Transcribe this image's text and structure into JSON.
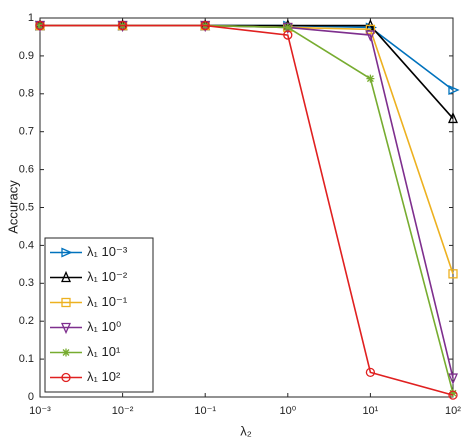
{
  "chart_data": {
    "type": "line",
    "x_label": "λ₂",
    "y_label": "Accuracy",
    "x": [
      0.001,
      0.01,
      0.1,
      1,
      10,
      100
    ],
    "xlim": [
      0.001,
      100
    ],
    "x_scale": "log",
    "xticks": [
      {
        "value": 0.001,
        "label": "10⁻³"
      },
      {
        "value": 0.01,
        "label": "10⁻²"
      },
      {
        "value": 0.1,
        "label": "10⁻¹"
      },
      {
        "value": 1,
        "label": "10⁰"
      },
      {
        "value": 10,
        "label": "10¹"
      },
      {
        "value": 100,
        "label": "10²"
      }
    ],
    "ylim": [
      0,
      1
    ],
    "yticks": [
      0,
      0.1,
      0.2,
      0.3,
      0.4,
      0.5,
      0.6,
      0.7,
      0.8,
      0.9,
      1
    ],
    "grid": false,
    "legend": "lower left",
    "series": [
      {
        "name": "λ₁ 10⁻³",
        "color": "#0072bd",
        "marker": "triangle-right",
        "values": [
          0.98,
          0.98,
          0.98,
          0.98,
          0.975,
          0.81
        ]
      },
      {
        "name": "λ₁ 10⁻²",
        "color": "#000000",
        "marker": "triangle-up",
        "values": [
          0.98,
          0.98,
          0.98,
          0.98,
          0.98,
          0.735
        ]
      },
      {
        "name": "λ₁ 10⁻¹",
        "color": "#edb120",
        "marker": "square",
        "values": [
          0.98,
          0.98,
          0.98,
          0.975,
          0.97,
          0.325
        ]
      },
      {
        "name": "λ₁ 10⁰",
        "color": "#7e2f8e",
        "marker": "triangle-down",
        "values": [
          0.98,
          0.98,
          0.98,
          0.975,
          0.955,
          0.05
        ]
      },
      {
        "name": "λ₁ 10¹",
        "color": "#77ac30",
        "marker": "asterisk",
        "values": [
          0.98,
          0.98,
          0.98,
          0.975,
          0.84,
          0.01
        ]
      },
      {
        "name": "λ₁ 10²",
        "color": "#e02020",
        "marker": "circle",
        "values": [
          0.98,
          0.98,
          0.98,
          0.955,
          0.065,
          0.005
        ]
      }
    ]
  }
}
